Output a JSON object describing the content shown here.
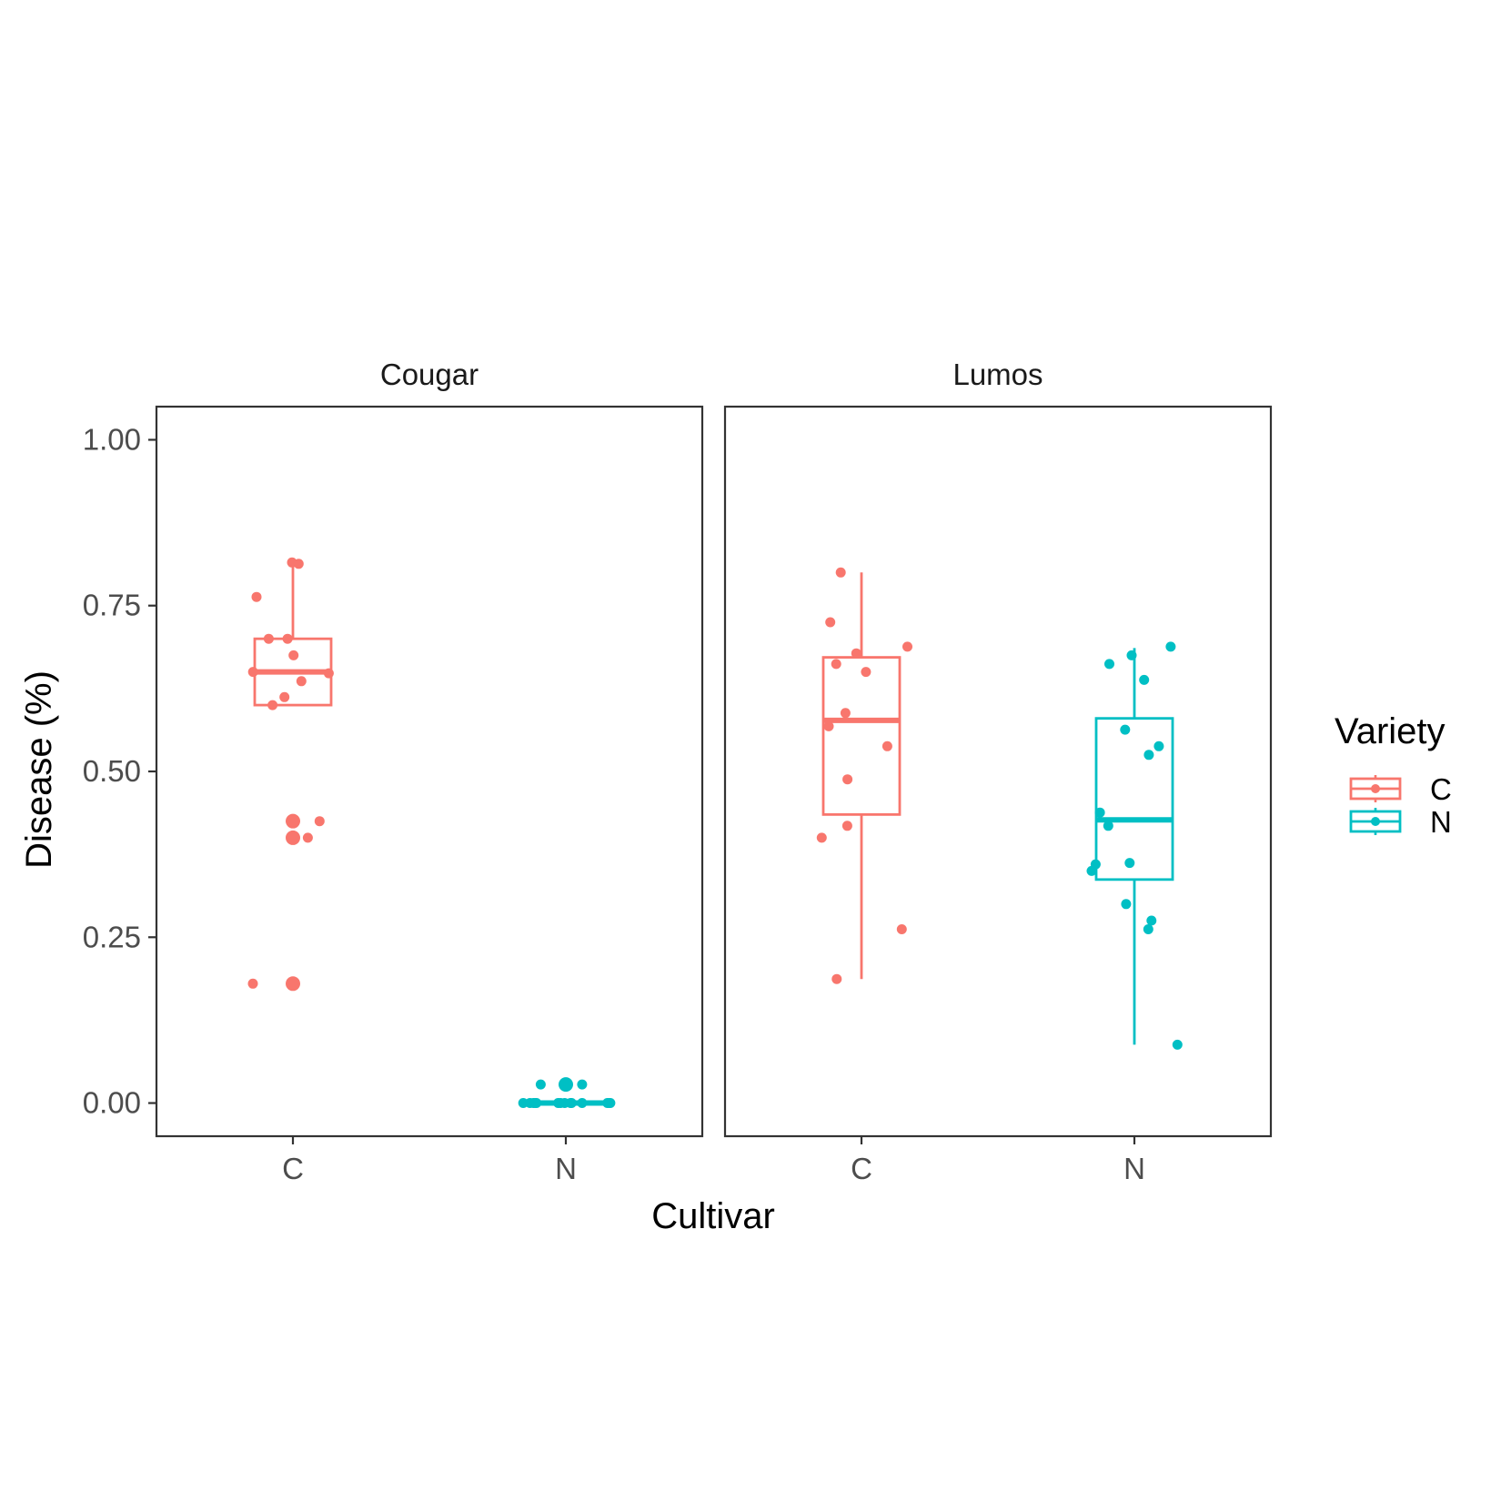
{
  "chart_data": {
    "type": "boxplot",
    "xlabel": "Cultivar",
    "ylabel": "Disease (%)",
    "ylim": [
      -0.05,
      1.05
    ],
    "y_ticks": [
      "0.00",
      "0.25",
      "0.50",
      "0.75",
      "1.00"
    ],
    "categories": [
      "C",
      "N"
    ],
    "legend": {
      "title": "Variety",
      "position": "right",
      "entries": [
        {
          "label": "C",
          "color": "#F8766D"
        },
        {
          "label": "N",
          "color": "#00BFC4"
        }
      ]
    },
    "panels": [
      {
        "title": "Cougar",
        "boxes": [
          {
            "category": "C",
            "variety": "C",
            "color": "#F8766D",
            "whisker_low": 0.6,
            "q1": 0.6,
            "median": 0.65,
            "q3": 0.7,
            "whisker_high": 0.815,
            "outliers": [
              0.425,
              0.4,
              0.18
            ]
          },
          {
            "category": "N",
            "variety": "N",
            "color": "#00BFC4",
            "whisker_low": 0.0,
            "q1": 0.0,
            "median": 0.0,
            "q3": 0.0,
            "whisker_high": 0.0,
            "outliers": [
              0.028
            ]
          }
        ],
        "points": [
          {
            "category": "C",
            "color": "#F8766D",
            "values": [
              0.815,
              0.813,
              0.763,
              0.7,
              0.7,
              0.675,
              0.65,
              0.648,
              0.636,
              0.612,
              0.6,
              0.425,
              0.4,
              0.18,
              0.18
            ]
          },
          {
            "category": "N",
            "color": "#00BFC4",
            "values": [
              0.028,
              0.028,
              0.0,
              0.0,
              0.0,
              0.0,
              0.0,
              0.0,
              0.0,
              0.0,
              0.0,
              0.0,
              0.0,
              0.0,
              0.0,
              0.0
            ]
          }
        ]
      },
      {
        "title": "Lumos",
        "boxes": [
          {
            "category": "C",
            "variety": "C",
            "color": "#F8766D",
            "whisker_low": 0.187,
            "q1": 0.435,
            "median": 0.577,
            "q3": 0.672,
            "whisker_high": 0.8,
            "outliers": []
          },
          {
            "category": "N",
            "variety": "N",
            "color": "#00BFC4",
            "whisker_low": 0.088,
            "q1": 0.337,
            "median": 0.427,
            "q3": 0.58,
            "whisker_high": 0.686,
            "outliers": []
          }
        ],
        "points": [
          {
            "category": "C",
            "color": "#F8766D",
            "values": [
              0.8,
              0.725,
              0.688,
              0.678,
              0.662,
              0.65,
              0.588,
              0.568,
              0.538,
              0.488,
              0.418,
              0.4,
              0.262,
              0.187
            ]
          },
          {
            "category": "N",
            "color": "#00BFC4",
            "values": [
              0.688,
              0.675,
              0.662,
              0.638,
              0.563,
              0.538,
              0.525,
              0.438,
              0.418,
              0.362,
              0.36,
              0.35,
              0.3,
              0.275,
              0.262,
              0.088
            ]
          }
        ]
      }
    ]
  }
}
